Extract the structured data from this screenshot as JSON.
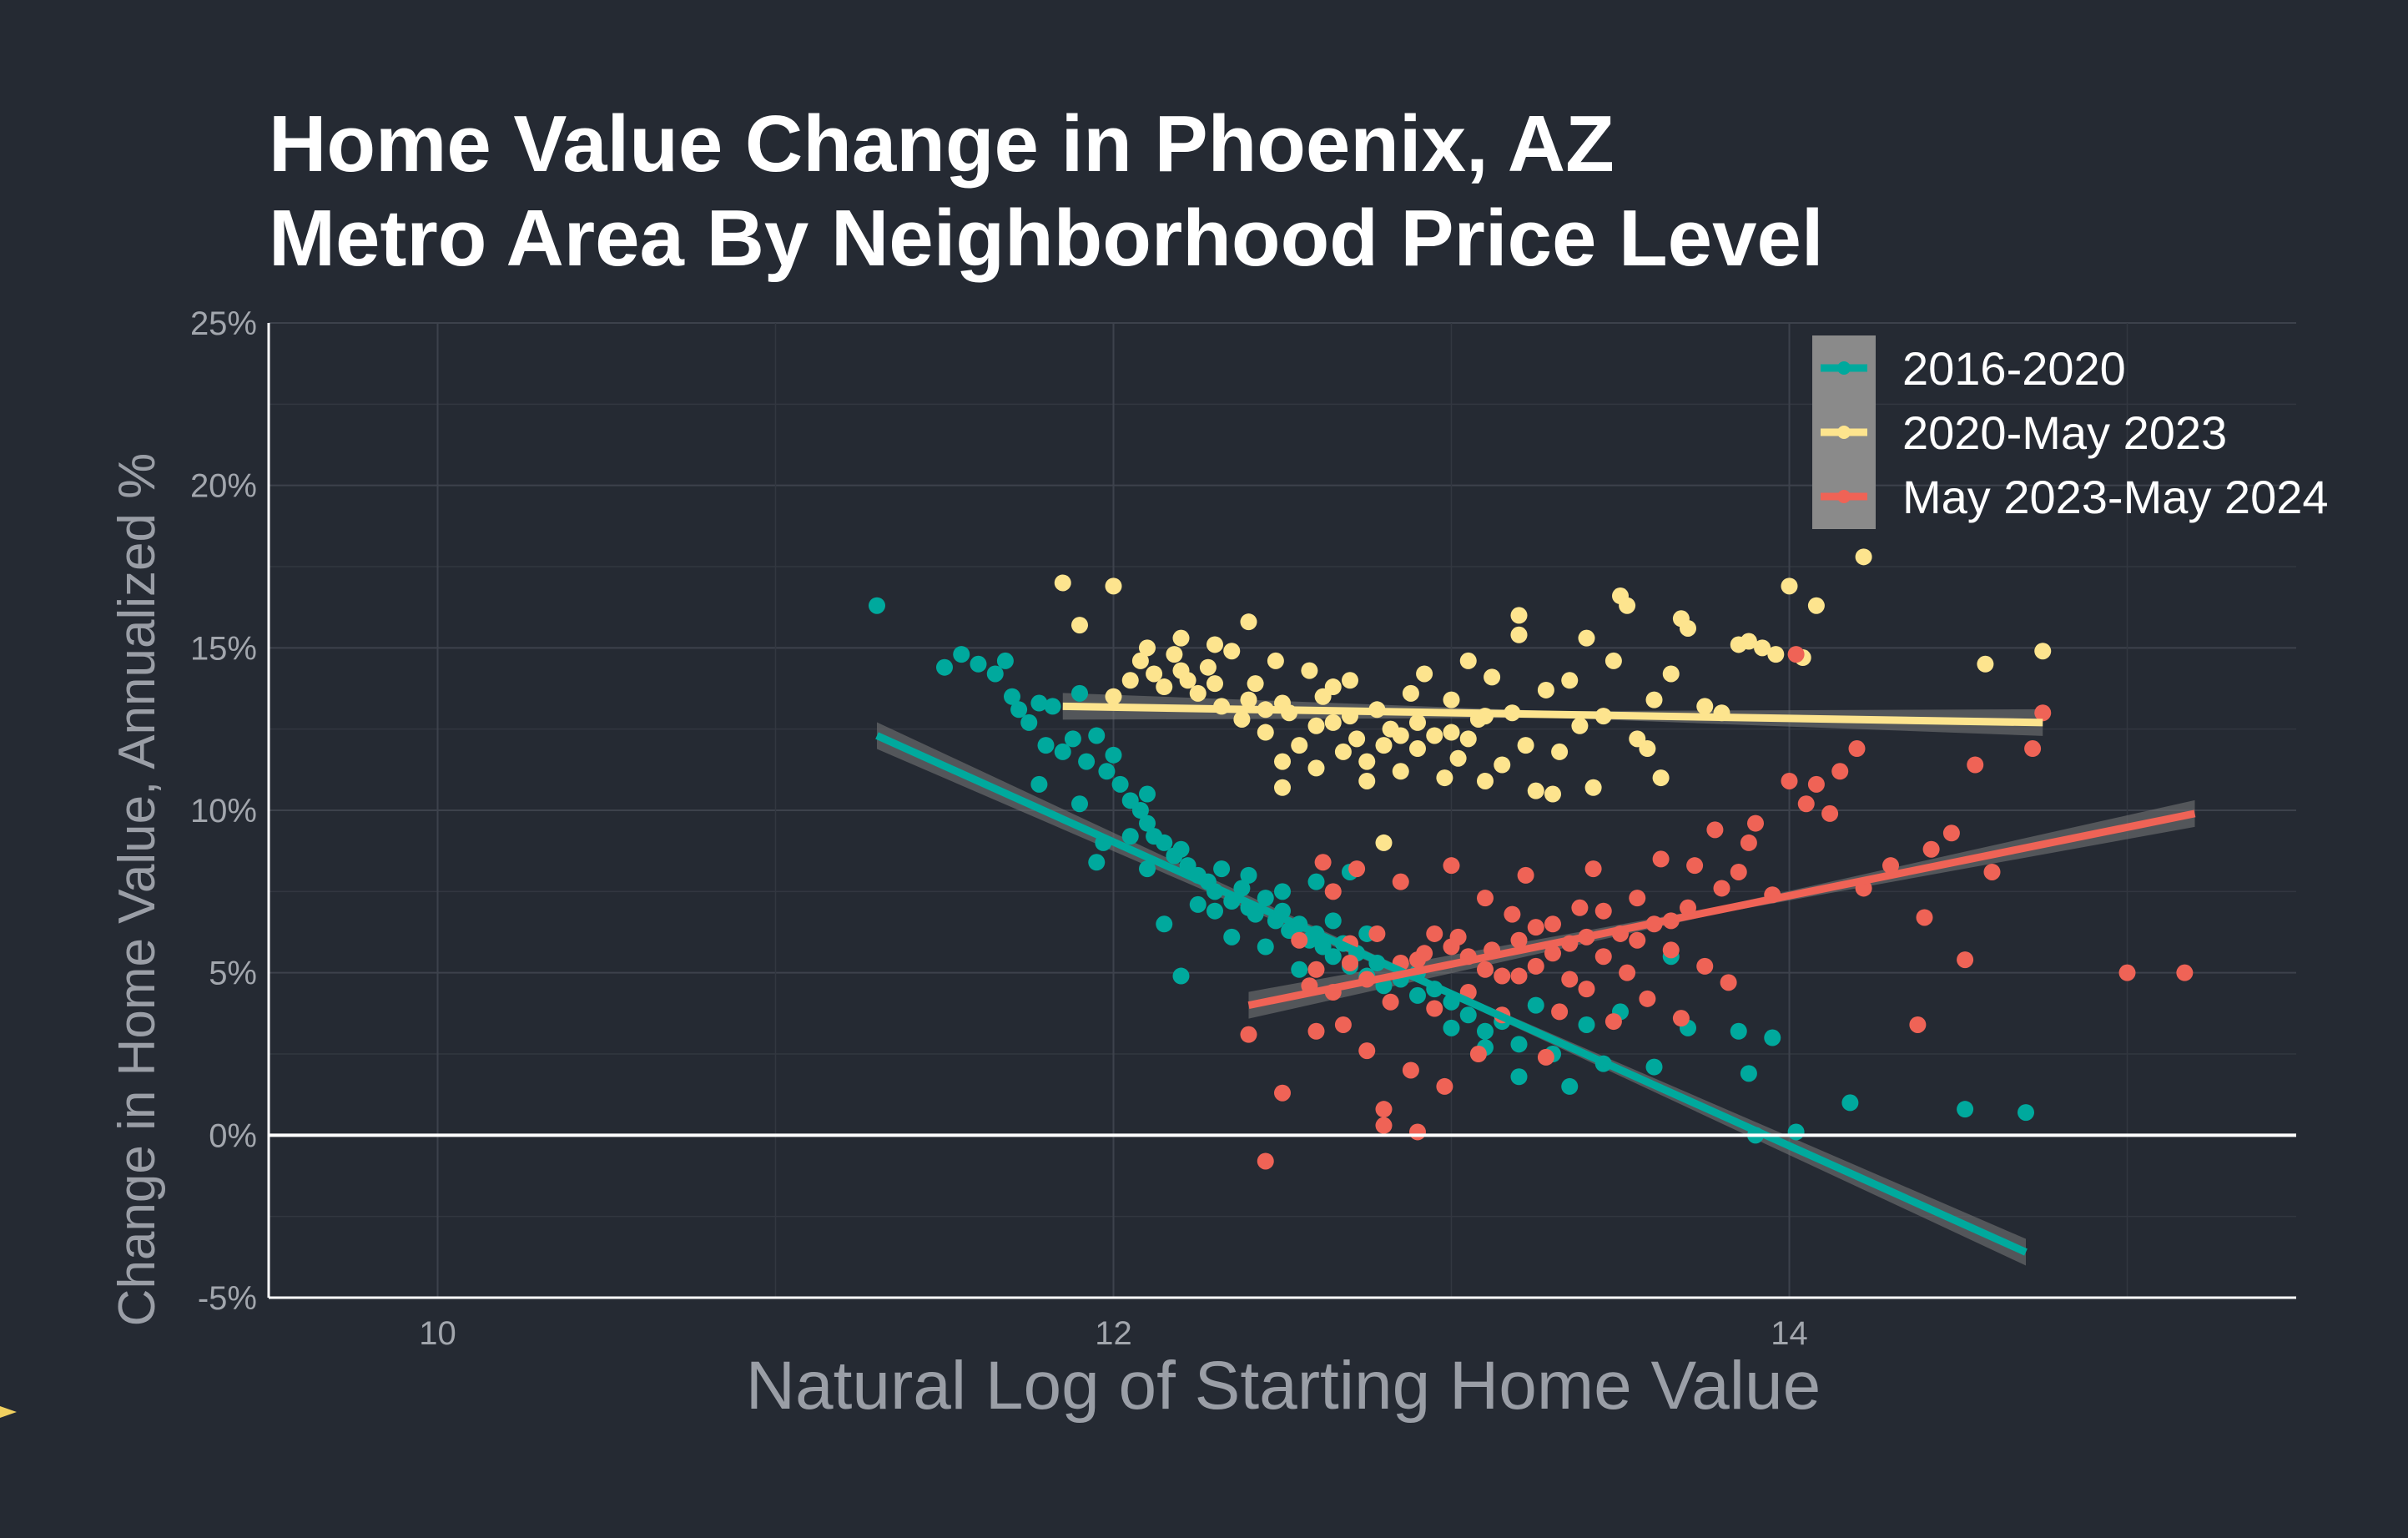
{
  "chart_data": {
    "type": "scatter",
    "title_lines": [
      "Home Value Change in Phoenix, AZ",
      "Metro Area By Neighborhood Price Level"
    ],
    "xlabel": "Natural Log of Starting Home Value",
    "ylabel": "Change in Home Value, Annualized %",
    "xlim": [
      9.5,
      15.5
    ],
    "ylim": [
      -5,
      25
    ],
    "x_ticks": [
      10,
      12,
      14
    ],
    "x_tick_labels": [
      "10",
      "12",
      "14"
    ],
    "y_ticks": [
      -5,
      0,
      5,
      10,
      15,
      20,
      25
    ],
    "y_tick_labels": [
      "-5%",
      "0%",
      "5%",
      "10%",
      "15%",
      "20%",
      "25%"
    ],
    "grid": true,
    "zero_line": true,
    "legend_position": "top-right",
    "series": [
      {
        "name": "2016-2020",
        "color": "#00a99d",
        "trend": {
          "x1": 11.3,
          "y1": 12.3,
          "x2": 14.7,
          "y2": -3.6
        },
        "points": [
          [
            11.3,
            16.3
          ],
          [
            11.5,
            14.4
          ],
          [
            11.55,
            14.8
          ],
          [
            11.6,
            14.5
          ],
          [
            11.65,
            14.2
          ],
          [
            11.68,
            14.6
          ],
          [
            11.7,
            13.5
          ],
          [
            11.72,
            13.1
          ],
          [
            11.75,
            12.7
          ],
          [
            11.78,
            13.3
          ],
          [
            11.8,
            12.0
          ],
          [
            11.82,
            13.2
          ],
          [
            11.85,
            11.8
          ],
          [
            11.88,
            12.2
          ],
          [
            11.9,
            13.6
          ],
          [
            11.92,
            11.5
          ],
          [
            11.95,
            12.3
          ],
          [
            11.98,
            11.2
          ],
          [
            12.0,
            11.7
          ],
          [
            12.02,
            10.8
          ],
          [
            11.95,
            8.4
          ],
          [
            11.97,
            9.0
          ],
          [
            11.9,
            10.2
          ],
          [
            11.78,
            10.8
          ],
          [
            12.05,
            10.3
          ],
          [
            12.08,
            10.0
          ],
          [
            12.1,
            9.6
          ],
          [
            12.12,
            9.2
          ],
          [
            12.15,
            9.0
          ],
          [
            12.18,
            8.6
          ],
          [
            12.2,
            8.8
          ],
          [
            12.22,
            8.3
          ],
          [
            12.25,
            8.0
          ],
          [
            12.28,
            7.8
          ],
          [
            12.3,
            7.5
          ],
          [
            12.32,
            8.2
          ],
          [
            12.35,
            7.2
          ],
          [
            12.38,
            7.6
          ],
          [
            12.4,
            7.0
          ],
          [
            12.42,
            6.8
          ],
          [
            12.45,
            7.3
          ],
          [
            12.48,
            6.6
          ],
          [
            12.5,
            6.9
          ],
          [
            12.52,
            6.3
          ],
          [
            12.55,
            6.5
          ],
          [
            12.58,
            6.0
          ],
          [
            12.6,
            6.2
          ],
          [
            12.62,
            5.8
          ],
          [
            12.65,
            5.5
          ],
          [
            12.68,
            5.9
          ],
          [
            12.7,
            5.2
          ],
          [
            12.72,
            5.6
          ],
          [
            12.75,
            4.9
          ],
          [
            12.78,
            5.3
          ],
          [
            12.8,
            4.6
          ],
          [
            12.85,
            4.8
          ],
          [
            12.9,
            4.3
          ],
          [
            12.95,
            4.5
          ],
          [
            13.0,
            4.1
          ],
          [
            13.05,
            3.7
          ],
          [
            13.1,
            3.2
          ],
          [
            13.15,
            3.5
          ],
          [
            13.2,
            2.8
          ],
          [
            13.2,
            1.8
          ],
          [
            13.3,
            2.5
          ],
          [
            13.35,
            1.5
          ],
          [
            13.4,
            3.4
          ],
          [
            13.45,
            2.2
          ],
          [
            13.5,
            3.8
          ],
          [
            13.6,
            2.1
          ],
          [
            13.65,
            5.5
          ],
          [
            13.7,
            3.3
          ],
          [
            13.85,
            3.2
          ],
          [
            13.88,
            1.9
          ],
          [
            13.9,
            0.0
          ],
          [
            13.95,
            3.0
          ],
          [
            14.02,
            0.1
          ],
          [
            14.18,
            1.0
          ],
          [
            14.52,
            0.8
          ],
          [
            14.7,
            0.7
          ],
          [
            12.2,
            4.9
          ],
          [
            12.4,
            8.0
          ],
          [
            12.6,
            7.8
          ],
          [
            12.1,
            10.5
          ],
          [
            12.15,
            6.5
          ],
          [
            12.3,
            6.9
          ],
          [
            12.5,
            7.5
          ],
          [
            12.7,
            8.1
          ],
          [
            12.55,
            5.1
          ],
          [
            12.45,
            5.8
          ],
          [
            12.35,
            6.1
          ],
          [
            12.25,
            7.1
          ],
          [
            12.65,
            6.6
          ],
          [
            12.75,
            6.2
          ],
          [
            12.9,
            5.0
          ],
          [
            13.0,
            3.3
          ],
          [
            13.1,
            2.7
          ],
          [
            13.25,
            4.0
          ],
          [
            12.05,
            9.2
          ],
          [
            12.1,
            8.2
          ]
        ]
      },
      {
        "name": "2020-May 2023",
        "color": "#fde48e",
        "trend": {
          "x1": 11.85,
          "y1": 13.2,
          "x2": 14.75,
          "y2": 12.7
        },
        "points": [
          [
            11.85,
            17.0
          ],
          [
            11.9,
            15.7
          ],
          [
            12.0,
            16.9
          ],
          [
            12.0,
            13.5
          ],
          [
            12.05,
            14.0
          ],
          [
            12.08,
            14.6
          ],
          [
            12.1,
            15.0
          ],
          [
            12.12,
            14.2
          ],
          [
            12.15,
            13.8
          ],
          [
            12.18,
            14.8
          ],
          [
            12.2,
            15.3
          ],
          [
            12.22,
            14.0
          ],
          [
            12.25,
            13.6
          ],
          [
            12.28,
            14.4
          ],
          [
            12.3,
            15.1
          ],
          [
            12.32,
            13.2
          ],
          [
            12.35,
            14.9
          ],
          [
            12.38,
            12.8
          ],
          [
            12.4,
            15.8
          ],
          [
            12.42,
            13.9
          ],
          [
            12.45,
            12.4
          ],
          [
            12.48,
            14.6
          ],
          [
            12.5,
            11.5
          ],
          [
            12.5,
            10.7
          ],
          [
            12.52,
            13.0
          ],
          [
            12.55,
            12.0
          ],
          [
            12.58,
            14.3
          ],
          [
            12.6,
            11.3
          ],
          [
            12.62,
            13.5
          ],
          [
            12.65,
            12.7
          ],
          [
            12.68,
            11.8
          ],
          [
            12.7,
            14.0
          ],
          [
            12.72,
            12.2
          ],
          [
            12.75,
            11.5
          ],
          [
            12.75,
            10.9
          ],
          [
            12.78,
            13.1
          ],
          [
            12.8,
            9.0
          ],
          [
            12.82,
            12.5
          ],
          [
            12.85,
            11.2
          ],
          [
            12.88,
            13.6
          ],
          [
            12.9,
            11.9
          ],
          [
            12.92,
            14.2
          ],
          [
            12.95,
            12.3
          ],
          [
            12.98,
            11.0
          ],
          [
            13.0,
            13.4
          ],
          [
            13.02,
            11.6
          ],
          [
            13.05,
            14.6
          ],
          [
            13.08,
            12.8
          ],
          [
            13.1,
            10.9
          ],
          [
            13.12,
            14.1
          ],
          [
            13.15,
            11.4
          ],
          [
            13.18,
            13.0
          ],
          [
            13.2,
            15.4
          ],
          [
            13.2,
            16.0
          ],
          [
            13.22,
            12.0
          ],
          [
            13.25,
            10.6
          ],
          [
            13.28,
            13.7
          ],
          [
            13.3,
            10.5
          ],
          [
            13.32,
            11.8
          ],
          [
            13.35,
            14.0
          ],
          [
            13.38,
            12.6
          ],
          [
            13.4,
            15.3
          ],
          [
            13.42,
            10.7
          ],
          [
            13.45,
            12.9
          ],
          [
            13.48,
            14.6
          ],
          [
            13.5,
            16.6
          ],
          [
            13.52,
            16.3
          ],
          [
            13.55,
            12.2
          ],
          [
            13.58,
            11.9
          ],
          [
            13.6,
            13.4
          ],
          [
            13.62,
            11.0
          ],
          [
            13.65,
            14.2
          ],
          [
            13.68,
            15.9
          ],
          [
            13.7,
            15.6
          ],
          [
            13.75,
            13.2
          ],
          [
            13.8,
            13.0
          ],
          [
            13.85,
            15.1
          ],
          [
            13.88,
            15.2
          ],
          [
            13.92,
            15.0
          ],
          [
            13.96,
            14.8
          ],
          [
            14.0,
            16.9
          ],
          [
            14.04,
            14.7
          ],
          [
            14.08,
            16.3
          ],
          [
            14.22,
            17.8
          ],
          [
            14.58,
            14.5
          ],
          [
            14.75,
            14.9
          ],
          [
            12.2,
            14.3
          ],
          [
            12.4,
            13.4
          ],
          [
            12.6,
            12.6
          ],
          [
            12.8,
            12.0
          ],
          [
            13.0,
            12.4
          ],
          [
            13.1,
            12.9
          ],
          [
            12.3,
            13.9
          ],
          [
            12.5,
            13.3
          ],
          [
            12.7,
            12.9
          ],
          [
            12.9,
            12.7
          ],
          [
            13.05,
            12.2
          ],
          [
            12.45,
            13.1
          ],
          [
            12.65,
            13.8
          ],
          [
            12.85,
            12.3
          ]
        ]
      },
      {
        "name": "May 2023-May 2024",
        "color": "#ef6356",
        "trend": {
          "x1": 12.4,
          "y1": 4.0,
          "x2": 15.2,
          "y2": 9.9
        },
        "points": [
          [
            12.4,
            3.1
          ],
          [
            12.45,
            -0.8
          ],
          [
            12.5,
            1.3
          ],
          [
            12.55,
            6.0
          ],
          [
            12.58,
            4.6
          ],
          [
            12.6,
            3.2
          ],
          [
            12.62,
            8.4
          ],
          [
            12.65,
            7.5
          ],
          [
            12.68,
            3.4
          ],
          [
            12.7,
            5.3
          ],
          [
            12.72,
            8.2
          ],
          [
            12.75,
            2.6
          ],
          [
            12.78,
            6.2
          ],
          [
            12.8,
            0.3
          ],
          [
            12.8,
            0.8
          ],
          [
            12.82,
            4.1
          ],
          [
            12.85,
            7.8
          ],
          [
            12.88,
            2.0
          ],
          [
            12.9,
            0.1
          ],
          [
            12.92,
            5.6
          ],
          [
            12.95,
            3.9
          ],
          [
            12.98,
            1.5
          ],
          [
            13.0,
            8.3
          ],
          [
            13.02,
            6.1
          ],
          [
            13.05,
            4.4
          ],
          [
            13.08,
            2.5
          ],
          [
            13.1,
            7.3
          ],
          [
            13.12,
            5.7
          ],
          [
            13.15,
            3.7
          ],
          [
            13.18,
            6.8
          ],
          [
            13.2,
            4.9
          ],
          [
            13.22,
            8.0
          ],
          [
            13.25,
            5.2
          ],
          [
            13.28,
            2.4
          ],
          [
            13.3,
            6.5
          ],
          [
            13.32,
            3.8
          ],
          [
            13.35,
            5.9
          ],
          [
            13.38,
            7.0
          ],
          [
            13.4,
            4.5
          ],
          [
            13.42,
            8.2
          ],
          [
            13.45,
            5.5
          ],
          [
            13.48,
            3.5
          ],
          [
            13.5,
            6.2
          ],
          [
            13.52,
            5.0
          ],
          [
            13.55,
            7.3
          ],
          [
            13.58,
            4.2
          ],
          [
            13.6,
            6.5
          ],
          [
            13.62,
            8.5
          ],
          [
            13.65,
            5.7
          ],
          [
            13.68,
            3.6
          ],
          [
            13.7,
            7.0
          ],
          [
            13.72,
            8.3
          ],
          [
            13.75,
            5.2
          ],
          [
            13.78,
            9.4
          ],
          [
            13.8,
            7.6
          ],
          [
            13.82,
            4.7
          ],
          [
            13.85,
            8.1
          ],
          [
            13.88,
            9.0
          ],
          [
            13.9,
            9.6
          ],
          [
            13.95,
            7.4
          ],
          [
            14.0,
            10.9
          ],
          [
            14.02,
            14.8
          ],
          [
            14.05,
            10.2
          ],
          [
            14.08,
            10.8
          ],
          [
            14.12,
            9.9
          ],
          [
            14.15,
            11.2
          ],
          [
            14.2,
            11.9
          ],
          [
            14.22,
            7.6
          ],
          [
            14.3,
            8.3
          ],
          [
            14.38,
            3.4
          ],
          [
            14.4,
            6.7
          ],
          [
            14.42,
            8.8
          ],
          [
            14.48,
            9.3
          ],
          [
            14.55,
            11.4
          ],
          [
            14.52,
            5.4
          ],
          [
            14.6,
            8.1
          ],
          [
            14.72,
            11.9
          ],
          [
            14.75,
            13.0
          ],
          [
            15.0,
            5.0
          ],
          [
            15.17,
            5.0
          ],
          [
            12.7,
            5.9
          ],
          [
            12.9,
            5.4
          ],
          [
            13.0,
            5.8
          ],
          [
            13.1,
            5.1
          ],
          [
            13.2,
            6.0
          ],
          [
            13.3,
            5.6
          ],
          [
            13.4,
            6.1
          ],
          [
            12.75,
            4.8
          ],
          [
            12.85,
            5.3
          ],
          [
            12.95,
            6.2
          ],
          [
            13.05,
            5.5
          ],
          [
            13.15,
            4.9
          ],
          [
            13.25,
            6.4
          ],
          [
            13.35,
            4.8
          ],
          [
            13.45,
            6.9
          ],
          [
            12.6,
            5.1
          ],
          [
            12.65,
            4.4
          ],
          [
            13.55,
            6.0
          ],
          [
            13.65,
            6.6
          ]
        ]
      }
    ]
  }
}
